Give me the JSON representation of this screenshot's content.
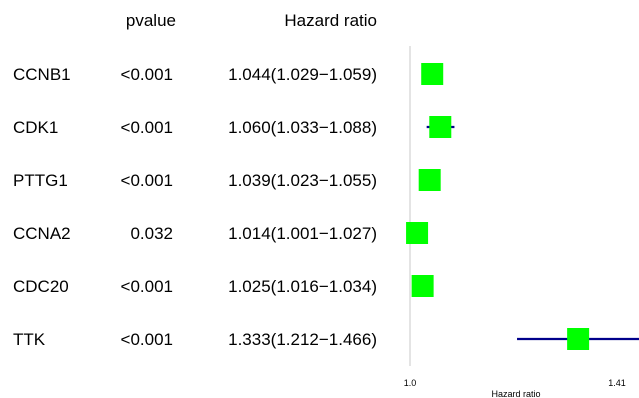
{
  "chart_data": {
    "type": "forest",
    "headers": {
      "pvalue": "pvalue",
      "hazard_ratio": "Hazard ratio"
    },
    "rows": [
      {
        "gene": "CCNB1",
        "pvalue": "<0.001",
        "hr_text": "1.044(1.029−1.059)",
        "hr": 1.044,
        "lower": 1.029,
        "upper": 1.059
      },
      {
        "gene": "CDK1",
        "pvalue": "<0.001",
        "hr_text": "1.060(1.033−1.088)",
        "hr": 1.06,
        "lower": 1.033,
        "upper": 1.088
      },
      {
        "gene": "PTTG1",
        "pvalue": "<0.001",
        "hr_text": "1.039(1.023−1.055)",
        "hr": 1.039,
        "lower": 1.023,
        "upper": 1.055
      },
      {
        "gene": "CCNA2",
        "pvalue": "0.032",
        "hr_text": "1.014(1.001−1.027)",
        "hr": 1.014,
        "lower": 1.001,
        "upper": 1.027
      },
      {
        "gene": "CDC20",
        "pvalue": "<0.001",
        "hr_text": "1.025(1.016−1.034)",
        "hr": 1.025,
        "lower": 1.016,
        "upper": 1.034
      },
      {
        "gene": "TTK",
        "pvalue": "<0.001",
        "hr_text": "1.333(1.212−1.466)",
        "hr": 1.333,
        "lower": 1.212,
        "upper": 1.466
      }
    ],
    "x_ticks": [
      "1.0",
      "1.41"
    ],
    "xlabel": "Hazard ratio",
    "xlim": [
      1.0,
      1.41
    ],
    "reference_line": 1.0,
    "grid": false,
    "legend": "none",
    "colors": {
      "box": "#00ff00",
      "ci": "#00008b",
      "reference": "#c8c8c8"
    }
  }
}
